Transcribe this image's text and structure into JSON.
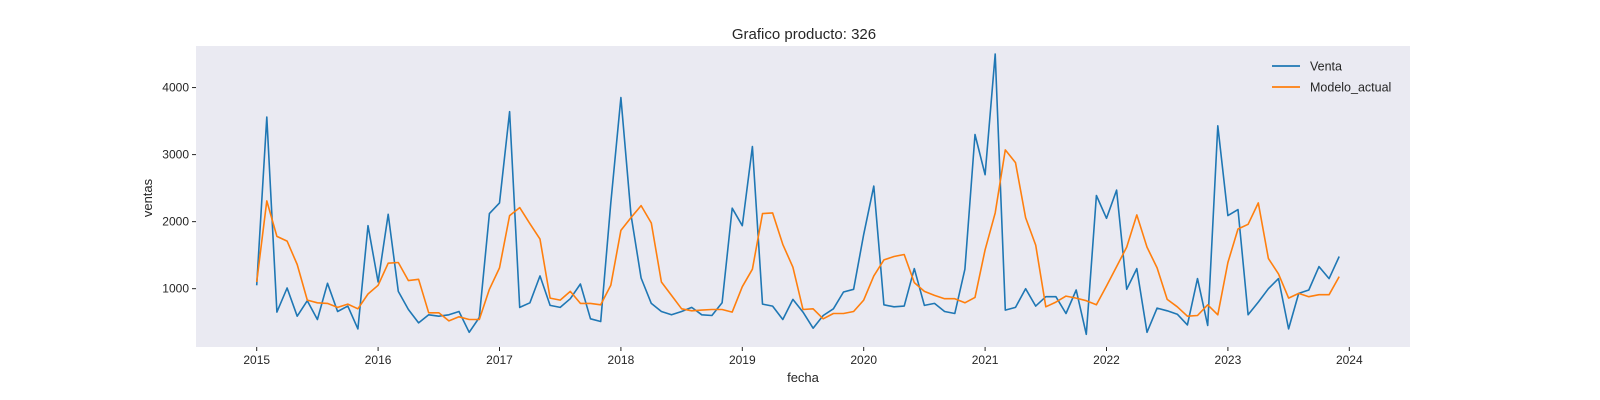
{
  "chart_data": {
    "type": "line",
    "title": "Grafico producto: 326",
    "xlabel": "fecha",
    "ylabel": "ventas",
    "x_start": "2015-01",
    "x_frequency": "monthly",
    "xlim": [
      "2014-07",
      "2024-07"
    ],
    "ylim": [
      130,
      4620
    ],
    "xticks": [
      {
        "date": "2015-01",
        "label": "2015"
      },
      {
        "date": "2016-01",
        "label": "2016"
      },
      {
        "date": "2017-01",
        "label": "2017"
      },
      {
        "date": "2018-01",
        "label": "2018"
      },
      {
        "date": "2019-01",
        "label": "2019"
      },
      {
        "date": "2020-01",
        "label": "2020"
      },
      {
        "date": "2021-01",
        "label": "2021"
      },
      {
        "date": "2022-01",
        "label": "2022"
      },
      {
        "date": "2023-01",
        "label": "2023"
      },
      {
        "date": "2024-01",
        "label": "2024"
      }
    ],
    "yticks": [
      1000,
      2000,
      3000,
      4000
    ],
    "grid": false,
    "background": "#eaeaf2",
    "legend_position": "top-right",
    "series": [
      {
        "name": "Venta",
        "color": "#1f77b4",
        "values": [
          1050,
          3560,
          650,
          1010,
          590,
          820,
          540,
          1080,
          660,
          740,
          400,
          1940,
          1100,
          2110,
          960,
          690,
          490,
          610,
          590,
          610,
          660,
          350,
          570,
          2120,
          2280,
          3640,
          720,
          790,
          1190,
          750,
          720,
          850,
          1070,
          550,
          510,
          2280,
          3850,
          2100,
          1160,
          780,
          660,
          610,
          660,
          720,
          610,
          600,
          790,
          2200,
          1940,
          3120,
          770,
          740,
          540,
          840,
          650,
          410,
          600,
          700,
          950,
          990,
          1810,
          2530,
          760,
          730,
          740,
          1300,
          750,
          780,
          660,
          630,
          1290,
          3300,
          2700,
          4500,
          680,
          720,
          1000,
          740,
          880,
          880,
          630,
          980,
          320,
          2390,
          2050,
          2470,
          990,
          1300,
          350,
          710,
          670,
          620,
          460,
          1150,
          450,
          3430,
          2090,
          2180,
          610,
          800,
          1000,
          1150,
          400,
          930,
          980,
          1330,
          1150,
          1480
        ]
      },
      {
        "name": "Modelo_actual",
        "color": "#ff7f0e",
        "values": [
          1100,
          2310,
          1780,
          1710,
          1360,
          830,
          790,
          780,
          720,
          770,
          700,
          920,
          1050,
          1380,
          1390,
          1120,
          1140,
          640,
          640,
          520,
          580,
          540,
          540,
          990,
          1310,
          2090,
          2210,
          1970,
          1740,
          860,
          830,
          960,
          780,
          780,
          760,
          1050,
          1870,
          2060,
          2240,
          1980,
          1100,
          900,
          700,
          670,
          680,
          690,
          690,
          650,
          1030,
          1290,
          2120,
          2130,
          1660,
          1320,
          690,
          700,
          550,
          630,
          630,
          660,
          830,
          1190,
          1430,
          1480,
          1510,
          1090,
          960,
          900,
          850,
          850,
          790,
          870,
          1580,
          2130,
          3070,
          2880,
          2060,
          1650,
          730,
          800,
          890,
          860,
          820,
          760,
          1040,
          1330,
          1620,
          2100,
          1620,
          1310,
          840,
          730,
          590,
          600,
          760,
          610,
          1390,
          1890,
          1960,
          2280,
          1450,
          1220,
          860,
          930,
          880,
          910,
          910,
          1180
        ]
      }
    ]
  }
}
